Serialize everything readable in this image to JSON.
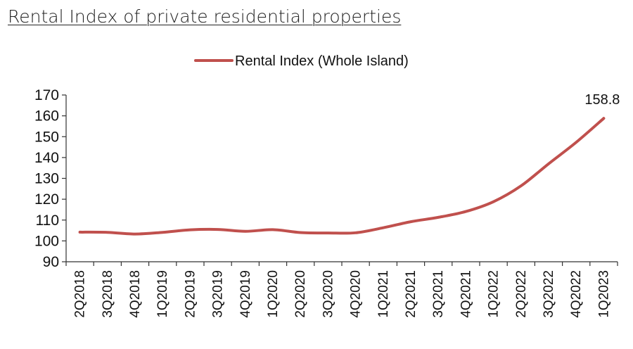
{
  "page_title": "Rental Index of private residential properties",
  "colors": {
    "series_line": "#c0504d",
    "axis": "#333333",
    "text": "#111111"
  },
  "chart_data": {
    "type": "line",
    "title": "",
    "xlabel": "",
    "ylabel": "",
    "ylim": [
      90,
      170
    ],
    "yticks": [
      90,
      100,
      110,
      120,
      130,
      140,
      150,
      160,
      170
    ],
    "grid": false,
    "legend_position": "top-center",
    "categories": [
      "2Q2018",
      "3Q2018",
      "4Q2018",
      "1Q2019",
      "2Q2019",
      "3Q2019",
      "4Q2019",
      "1Q2020",
      "2Q2020",
      "3Q2020",
      "4Q2020",
      "1Q2021",
      "2Q2021",
      "3Q2021",
      "4Q2021",
      "1Q2022",
      "2Q2022",
      "3Q2022",
      "4Q2022",
      "1Q2023"
    ],
    "series": [
      {
        "name": "Rental Index (Whole Island)",
        "color": "#c0504d",
        "values": [
          104.2,
          104.1,
          103.3,
          104.1,
          105.3,
          105.5,
          104.6,
          105.4,
          104.0,
          103.8,
          103.9,
          106.3,
          109.2,
          111.3,
          114.1,
          118.8,
          126.4,
          137.0,
          147.3,
          158.8
        ]
      }
    ],
    "annotations": [
      {
        "category": "1Q2023",
        "text": "158.8"
      }
    ]
  }
}
